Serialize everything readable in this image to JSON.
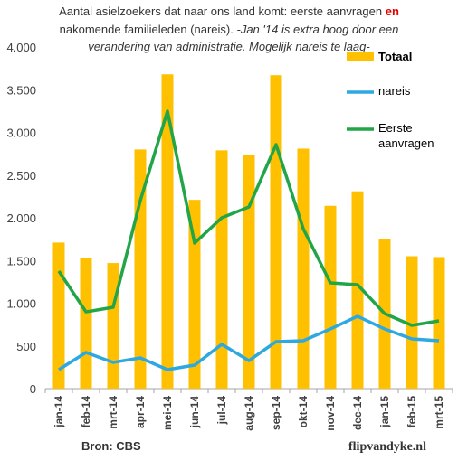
{
  "chart_data": {
    "type": "bar-line",
    "title": {
      "line1": "Aantal asielzoekers dat naar ons land komt: eerste aanvragen",
      "highlight": "en",
      "line2": "nakomende familieleden (nareis).",
      "note_lines": [
        "-Jan '14 is extra hoog door een",
        "verandering van administratie. Mogelijk nareis te laag-"
      ]
    },
    "categories": [
      "jan-14",
      "feb-14",
      "mrt-14",
      "apr-14",
      "mei-14",
      "jun-14",
      "jul-14",
      "aug-14",
      "sep-14",
      "okt-14",
      "nov-14",
      "dec-14",
      "jan-15",
      "feb-15",
      "mrt-15"
    ],
    "series": [
      {
        "name": "Totaal",
        "type": "bar",
        "color": "#FFC000",
        "values": [
          1710,
          1530,
          1470,
          2800,
          3680,
          2210,
          2790,
          2740,
          3670,
          2810,
          2140,
          2310,
          1750,
          1550,
          1540
        ]
      },
      {
        "name": "nareis",
        "type": "line",
        "color": "#2EA8E0",
        "values": [
          222,
          423,
          307,
          360,
          222,
          275,
          519,
          328,
          550,
          561,
          698,
          847,
          698,
          582,
          561
        ]
      },
      {
        "name": "Eerste aanvragen",
        "type": "line",
        "color": "#21A548",
        "values": [
          1376,
          899,
          952,
          2201,
          3249,
          1704,
          2000,
          2127,
          2857,
          1873,
          1238,
          1217,
          878,
          741,
          794
        ]
      }
    ],
    "ylim": [
      0,
      4000
    ],
    "yticks": [
      0,
      500,
      {
        "value": 1000,
        "label": "1.000"
      },
      {
        "value": 1500,
        "label": "1.500"
      },
      {
        "value": 2000,
        "label": "2.000"
      },
      {
        "value": 2500,
        "label": "2.500"
      },
      {
        "value": 3000,
        "label": "3.000"
      },
      {
        "value": 3500,
        "label": "3.500"
      },
      {
        "value": 4000,
        "label": "4.000"
      }
    ],
    "grid": false,
    "source": "Bron: CBS",
    "credit": "flipvandyke.nl"
  }
}
